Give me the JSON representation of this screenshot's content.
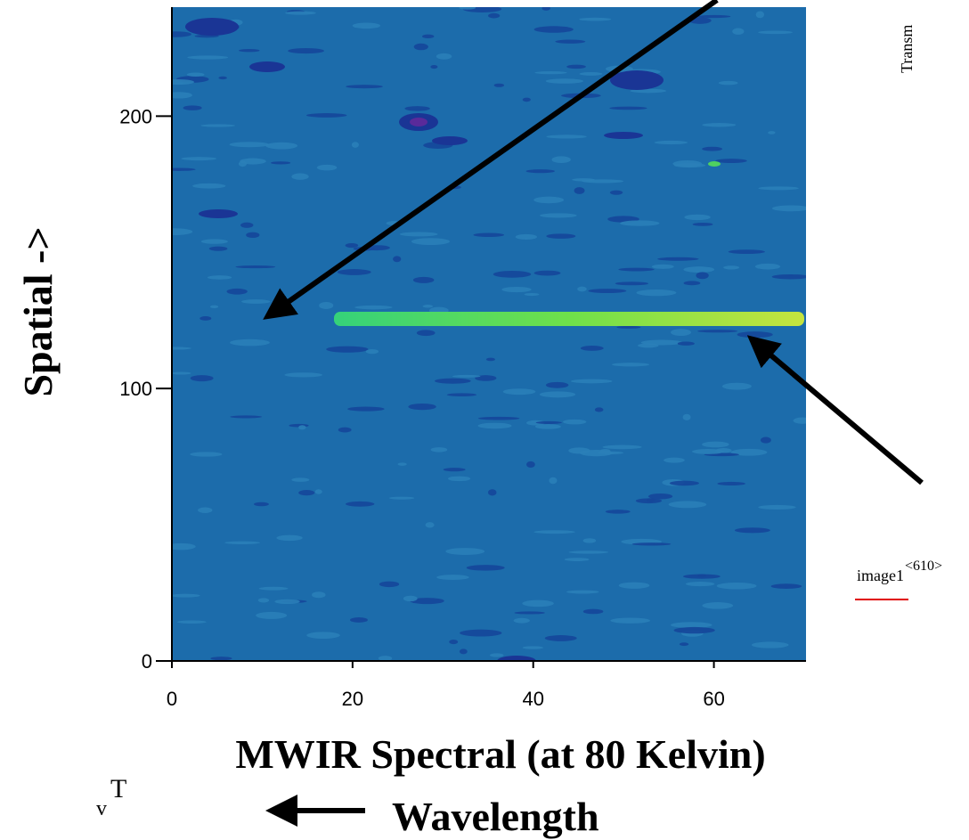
{
  "chart_data": {
    "type": "image",
    "xlabel": "MWIR Spectral (at 80 Kelvin)",
    "ylabel": "Spatial ->",
    "xlim": [
      0,
      70
    ],
    "ylim": [
      0,
      240
    ],
    "xticks": [
      0,
      20,
      40,
      60
    ],
    "yticks": [
      0,
      100,
      200
    ],
    "annotations": {
      "direction": "Wavelength",
      "side_label": "Transm",
      "image_name": "image1",
      "image_index": "<610>",
      "var_base": "v",
      "var_sup": "T"
    }
  }
}
